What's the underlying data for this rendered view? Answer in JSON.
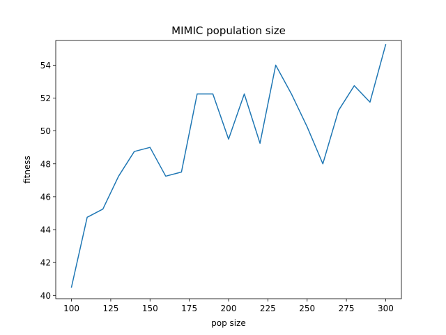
{
  "chart_data": {
    "type": "line",
    "title": "MIMIC population size",
    "xlabel": "pop size",
    "ylabel": "fitness",
    "xlim": [
      90,
      310
    ],
    "ylim": [
      39.8,
      55.5
    ],
    "xticks": [
      100,
      125,
      150,
      175,
      200,
      225,
      250,
      275,
      300
    ],
    "yticks": [
      40,
      42,
      44,
      46,
      48,
      50,
      52,
      54
    ],
    "grid": false,
    "series": [
      {
        "color": "#1f77b4",
        "x": [
          100,
          110,
          120,
          130,
          140,
          150,
          160,
          170,
          180,
          190,
          200,
          210,
          220,
          230,
          240,
          250,
          260,
          270,
          280,
          290,
          300
        ],
        "y": [
          40.5,
          44.75,
          45.25,
          47.25,
          48.75,
          49.0,
          47.25,
          47.5,
          52.25,
          52.25,
          49.5,
          52.25,
          49.25,
          54.0,
          52.25,
          50.25,
          48.0,
          51.25,
          52.75,
          51.75,
          55.25
        ]
      }
    ]
  }
}
